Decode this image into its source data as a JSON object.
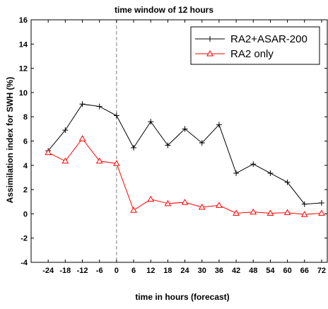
{
  "chart_data": {
    "type": "line",
    "title": "time window of 12 hours",
    "xlabel": "time in hours (forecast)",
    "ylabel": "Assimilation index for SWH (%)",
    "x": [
      -24,
      -18,
      -12,
      -6,
      0,
      6,
      12,
      18,
      24,
      30,
      36,
      42,
      48,
      54,
      60,
      66,
      72
    ],
    "xlim": [
      -30,
      74
    ],
    "ylim": [
      -4,
      16
    ],
    "x_ticks": [
      -24,
      -18,
      -12,
      -6,
      0,
      6,
      12,
      18,
      24,
      30,
      36,
      42,
      48,
      54,
      60,
      66,
      72
    ],
    "y_ticks": [
      -4,
      -2,
      0,
      2,
      4,
      6,
      8,
      10,
      12,
      14,
      16
    ],
    "vertical_reference_line": {
      "x": 0,
      "style": "dashed",
      "color": "#808080"
    },
    "grid": false,
    "legend_position": "top-right",
    "series": [
      {
        "name": "RA2+ASAR-200",
        "color": "#000000",
        "marker": "plus",
        "values": [
          5.2,
          6.9,
          9.05,
          8.85,
          8.1,
          5.45,
          7.6,
          5.65,
          7.0,
          5.85,
          7.35,
          3.35,
          4.1,
          3.35,
          2.6,
          0.8,
          0.9
        ]
      },
      {
        "name": "RA2 only",
        "color": "#ff0000",
        "marker": "triangle",
        "values": [
          5.05,
          4.35,
          6.2,
          4.35,
          4.15,
          0.3,
          1.2,
          0.85,
          0.95,
          0.55,
          0.7,
          0.05,
          0.15,
          0.05,
          0.1,
          -0.05,
          0.05
        ]
      }
    ]
  }
}
